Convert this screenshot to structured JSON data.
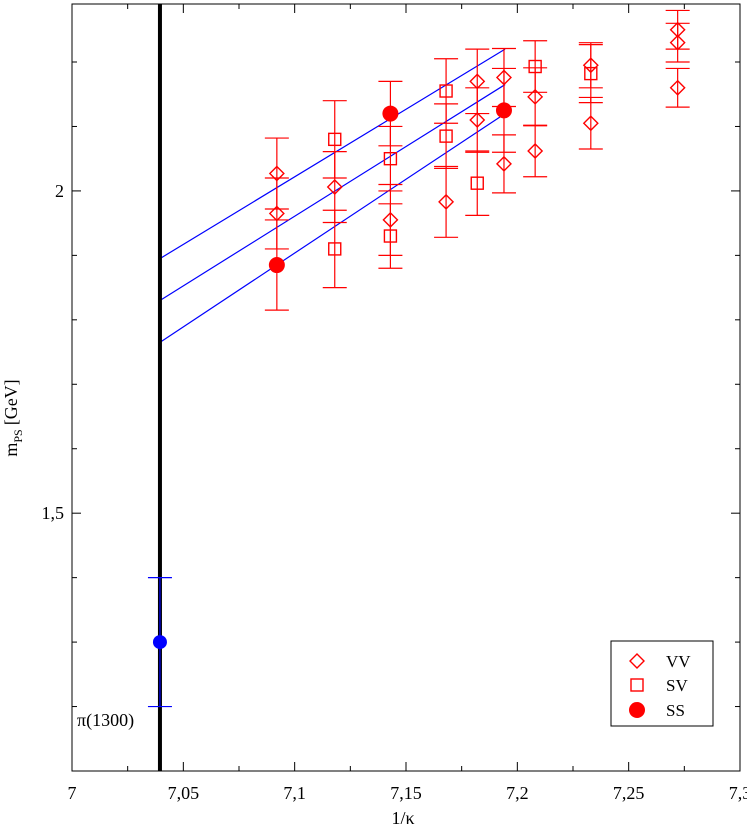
{
  "chart_data": {
    "type": "scatter",
    "xlabel": "1/κ",
    "ylabel_main": "m",
    "ylabel_sub": "PS",
    "ylabel_unit": "[GeV]",
    "xlim": [
      7.0,
      7.3
    ],
    "ylim": [
      1.1,
      2.29
    ],
    "x_ticks": [
      {
        "value": 7.0,
        "label": "7"
      },
      {
        "value": 7.05,
        "label": "7,05"
      },
      {
        "value": 7.1,
        "label": "7,1"
      },
      {
        "value": 7.15,
        "label": "7,15"
      },
      {
        "value": 7.2,
        "label": "7,2"
      },
      {
        "value": 7.25,
        "label": "7,25"
      },
      {
        "value": 7.3,
        "label": "7,3"
      }
    ],
    "y_ticks": [
      {
        "value": 1.5,
        "label": "1,5"
      },
      {
        "value": 2.0,
        "label": "2"
      }
    ],
    "vertical_line": {
      "x": 7.0395,
      "color": "#000000"
    },
    "reference_point": {
      "label": "π(1300)",
      "x": 7.0395,
      "y": 1.3,
      "err": 0.1,
      "color": "#0000ff"
    },
    "fit_lines": [
      {
        "x": [
          7.0395,
          7.1945
        ],
        "y": [
          1.895,
          2.22
        ]
      },
      {
        "x": [
          7.0395,
          7.1945
        ],
        "y": [
          1.83,
          2.165
        ]
      },
      {
        "x": [
          7.0395,
          7.1945
        ],
        "y": [
          1.765,
          2.12
        ]
      }
    ],
    "fit_line_color": "#0000ff",
    "series_color": "#ff0000",
    "legend_position": "bottom-right",
    "series": [
      {
        "name": "VV",
        "marker": "diamond",
        "points": [
          {
            "x": 7.092,
            "y": 2.027,
            "err": 0.055
          },
          {
            "x": 7.092,
            "y": 1.965,
            "err": 0.055
          },
          {
            "x": 7.118,
            "y": 2.006,
            "err": 0.055
          },
          {
            "x": 7.143,
            "y": 1.955,
            "err": 0.055
          },
          {
            "x": 7.168,
            "y": 1.983,
            "err": 0.055
          },
          {
            "x": 7.182,
            "y": 2.17,
            "err": 0.05
          },
          {
            "x": 7.182,
            "y": 2.11,
            "err": 0.05
          },
          {
            "x": 7.194,
            "y": 2.176,
            "err": 0.045
          },
          {
            "x": 7.194,
            "y": 2.042,
            "err": 0.045
          },
          {
            "x": 7.208,
            "y": 2.146,
            "err": 0.045
          },
          {
            "x": 7.208,
            "y": 2.062,
            "err": 0.04
          },
          {
            "x": 7.233,
            "y": 2.195,
            "err": 0.035
          },
          {
            "x": 7.233,
            "y": 2.105,
            "err": 0.04
          },
          {
            "x": 7.272,
            "y": 2.25,
            "err": 0.03
          },
          {
            "x": 7.272,
            "y": 2.23,
            "err": 0.03
          },
          {
            "x": 7.272,
            "y": 2.16,
            "err": 0.03
          }
        ]
      },
      {
        "name": "SV",
        "marker": "square",
        "points": [
          {
            "x": 7.118,
            "y": 2.08,
            "err": 0.06
          },
          {
            "x": 7.118,
            "y": 1.91,
            "err": 0.06
          },
          {
            "x": 7.143,
            "y": 2.05,
            "err": 0.05
          },
          {
            "x": 7.143,
            "y": 1.93,
            "err": 0.05
          },
          {
            "x": 7.168,
            "y": 2.155,
            "err": 0.05
          },
          {
            "x": 7.168,
            "y": 2.085,
            "err": 0.05
          },
          {
            "x": 7.182,
            "y": 2.012,
            "err": 0.05
          },
          {
            "x": 7.208,
            "y": 2.193,
            "err": 0.04
          },
          {
            "x": 7.233,
            "y": 2.182,
            "err": 0.045
          }
        ]
      },
      {
        "name": "SS",
        "marker": "filled-circle",
        "points": [
          {
            "x": 7.092,
            "y": 1.885,
            "err": 0.07
          },
          {
            "x": 7.143,
            "y": 2.12,
            "err": 0.05
          },
          {
            "x": 7.194,
            "y": 2.125,
            "err": 0.065
          }
        ]
      }
    ]
  }
}
